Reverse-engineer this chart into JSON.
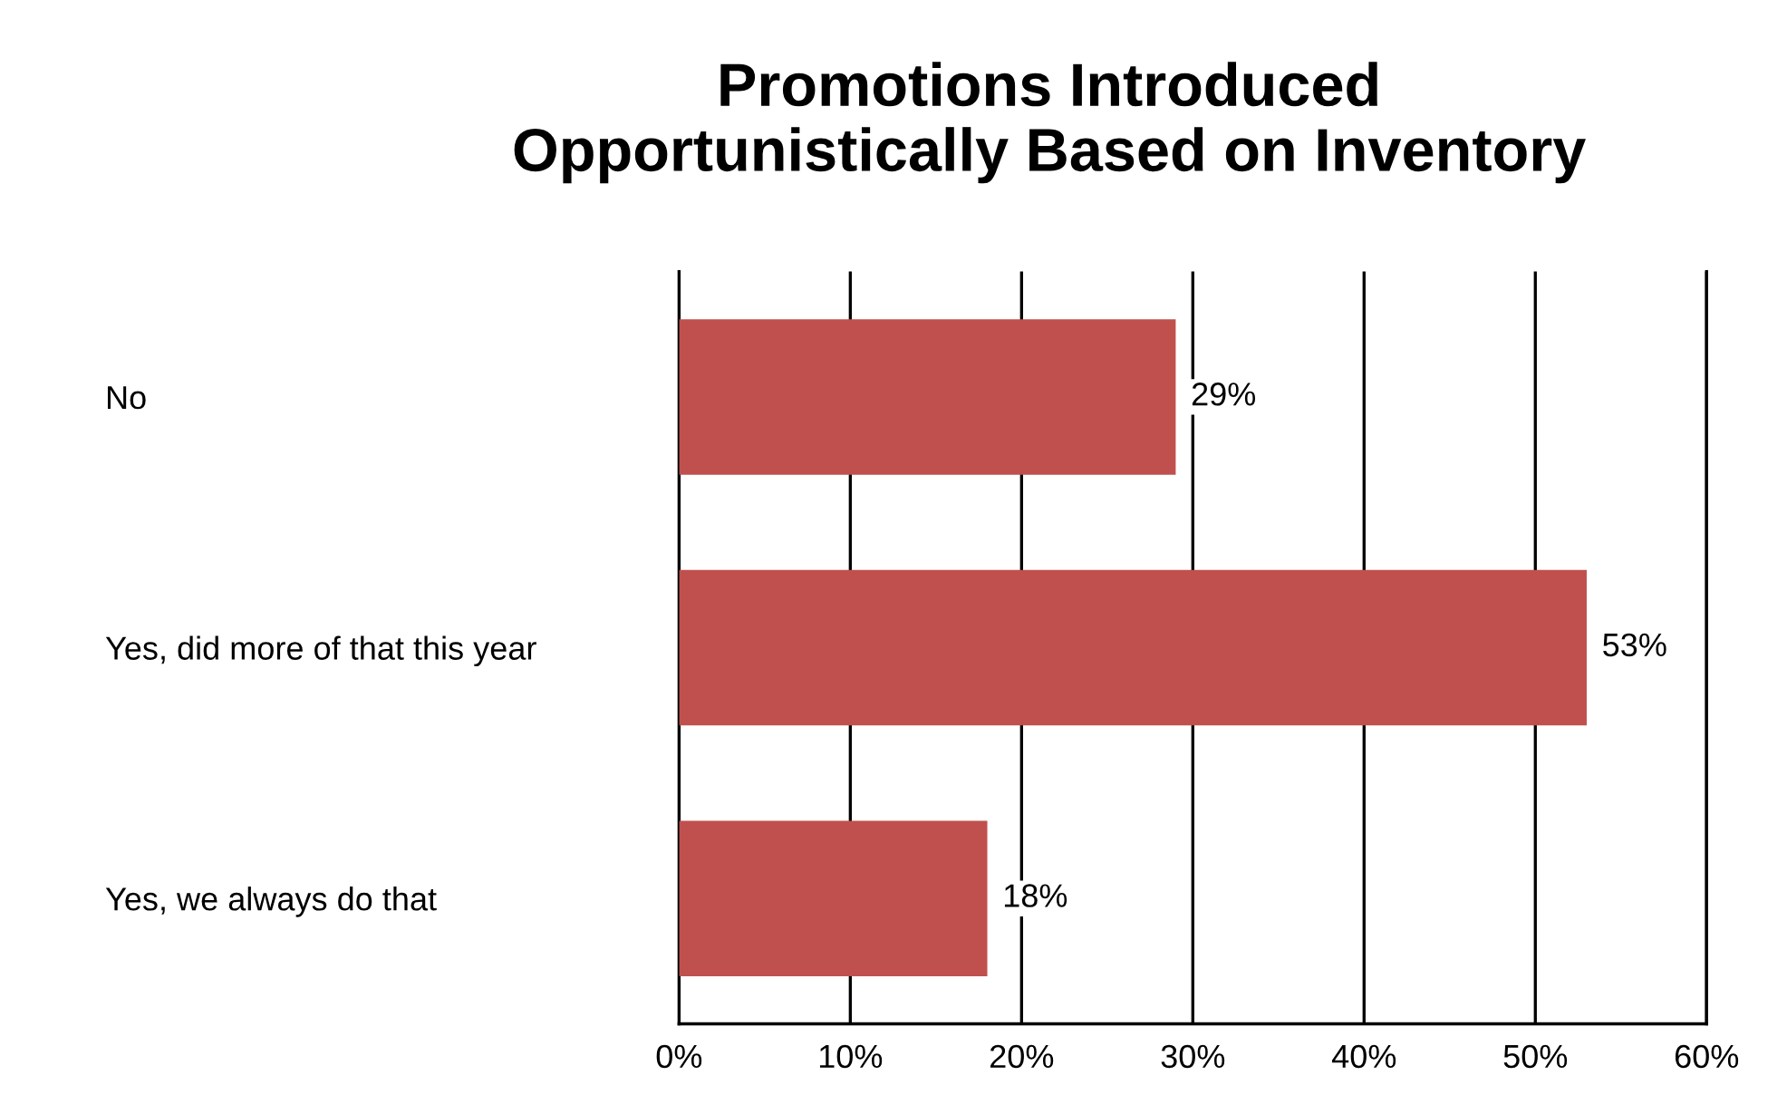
{
  "chart_data": {
    "type": "bar",
    "orientation": "horizontal",
    "title": "Promotions Introduced\nOpportunistically Based on Inventory",
    "categories": [
      "No",
      "Yes, did more of that this year",
      "Yes, we always do that"
    ],
    "values": [
      29,
      53,
      18
    ],
    "value_labels": [
      "29%",
      "53%",
      "18%"
    ],
    "color": "#c0504d",
    "xlim": [
      0,
      60
    ],
    "xticks": [
      {
        "value": 0,
        "label": "0%"
      },
      {
        "value": 10,
        "label": "10%"
      },
      {
        "value": 20,
        "label": "20%"
      },
      {
        "value": 30,
        "label": "30%"
      },
      {
        "value": 40,
        "label": "40%"
      },
      {
        "value": 50,
        "label": "50%"
      },
      {
        "value": 60,
        "label": "60%"
      }
    ],
    "grid": "x"
  }
}
